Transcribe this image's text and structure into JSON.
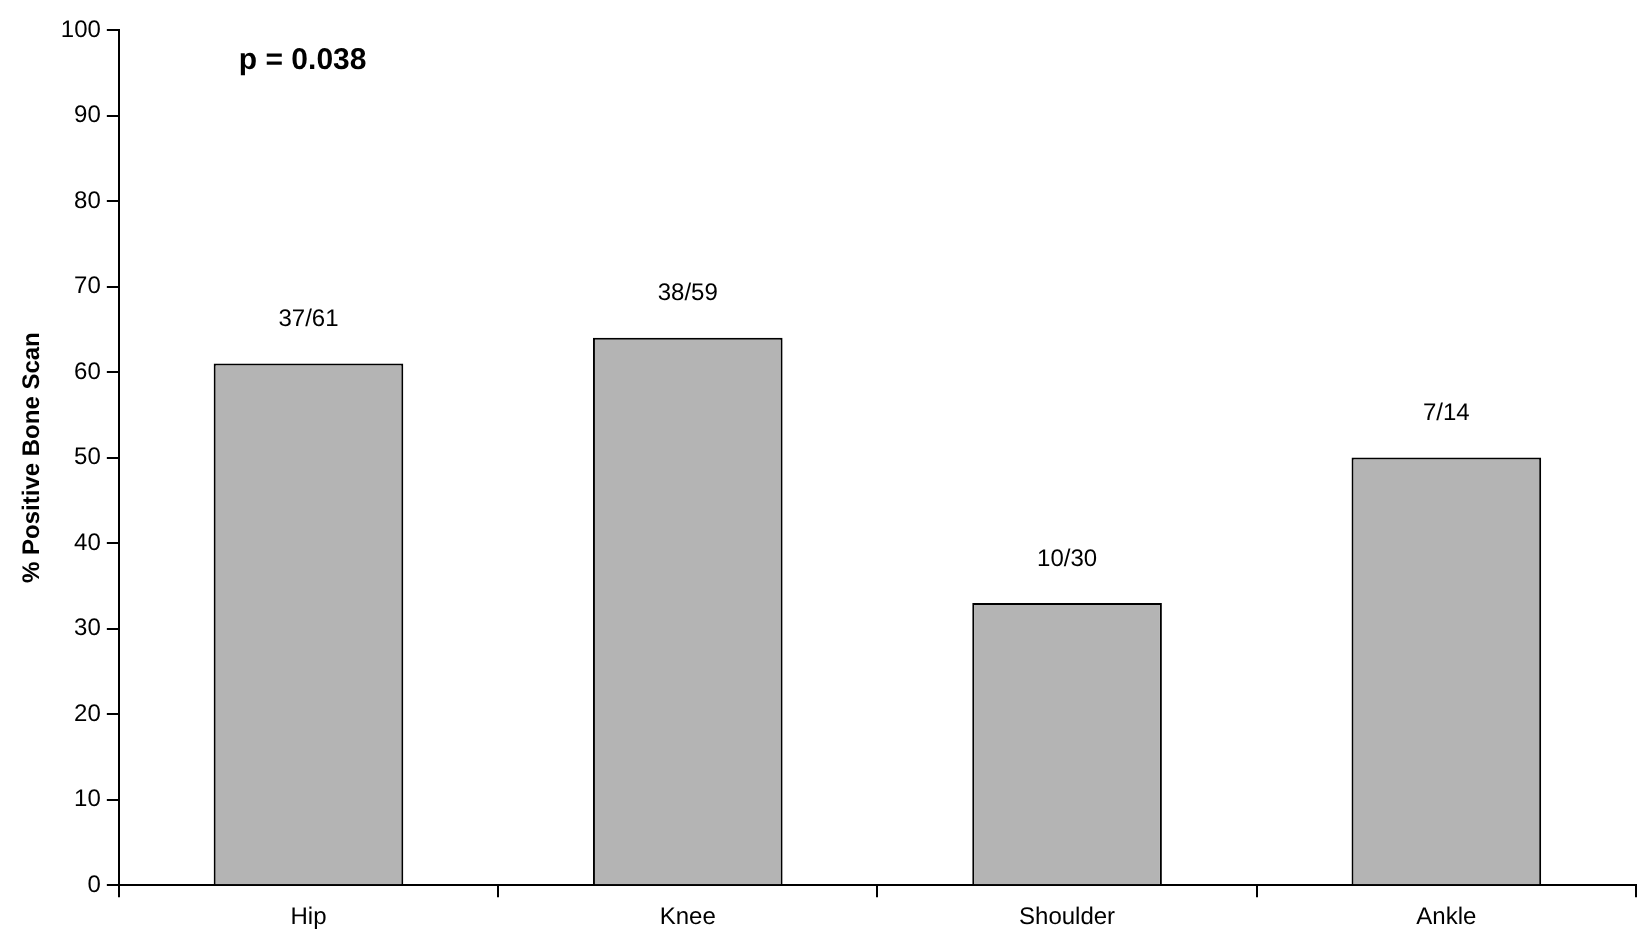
{
  "chart_data": {
    "type": "bar",
    "ylabel": "% Positive Bone Scan",
    "categories": [
      "Hip",
      "Knee",
      "Shoulder",
      "Ankle"
    ],
    "values": [
      61,
      64,
      33,
      50
    ],
    "value_labels": [
      "37/61",
      "38/59",
      "10/30",
      "7/14"
    ],
    "color": "#b4b4b4",
    "ylim": [
      0,
      100
    ],
    "yticks": [
      0,
      10,
      20,
      30,
      40,
      50,
      60,
      70,
      80,
      90,
      100
    ],
    "annotations": [
      "p = 0.038"
    ]
  }
}
